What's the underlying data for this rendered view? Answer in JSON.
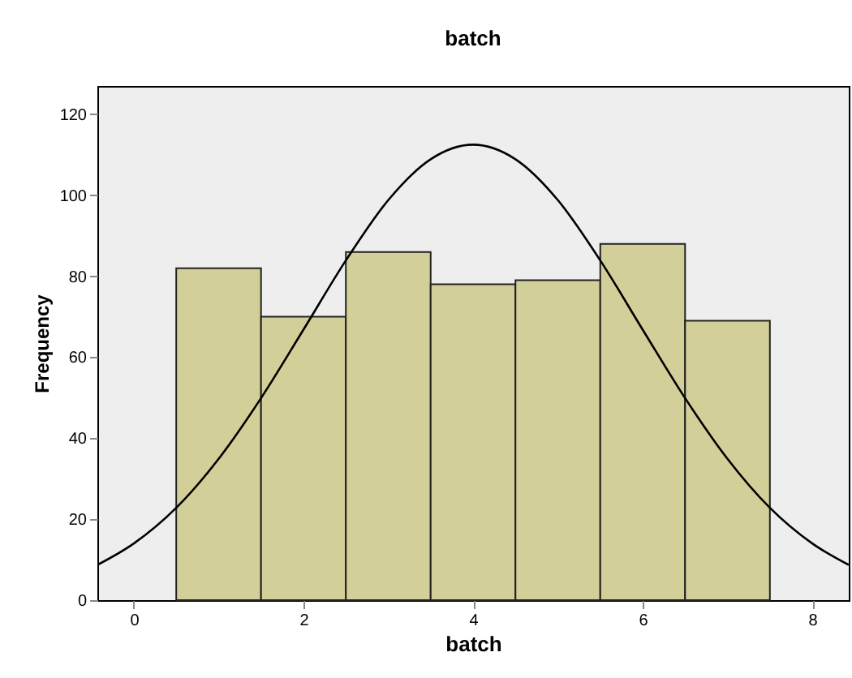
{
  "chart_data": {
    "type": "histogram",
    "title": "batch",
    "xlabel": "batch",
    "ylabel": "Frequency",
    "bins": [
      0.5,
      1.5,
      2.5,
      3.5,
      4.5,
      5.5,
      6.5,
      7.5
    ],
    "values": [
      82,
      70,
      86,
      78,
      79,
      88,
      69
    ],
    "color": "#d3cf98",
    "series": [
      {
        "type": "line",
        "color": "#000000",
        "x": [
          -0.43,
          0,
          0.5,
          1,
          1.5,
          2,
          2.5,
          3,
          3.5,
          4,
          4.5,
          5,
          5.5,
          6,
          6.5,
          7,
          7.5,
          8,
          8.43
        ],
        "values": [
          8.7,
          14.0,
          22.8,
          34.9,
          49.9,
          66.8,
          83.9,
          98.8,
          108.9,
          112.5,
          108.9,
          98.8,
          83.9,
          66.8,
          49.9,
          34.9,
          22.8,
          14.0,
          8.7
        ]
      }
    ],
    "xlim": [
      -0.43,
      8.43
    ],
    "xticks": [
      0,
      2,
      4,
      6,
      8
    ],
    "ylim": [
      0,
      127
    ],
    "yticks": [
      0,
      20,
      40,
      60,
      80,
      100,
      120
    ],
    "grid": false
  }
}
